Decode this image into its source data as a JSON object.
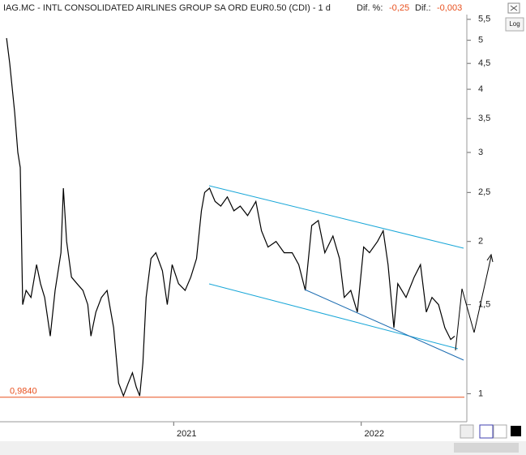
{
  "chart_data": {
    "type": "line",
    "title": "IAG.MC - INTL CONSOLIDATED AIRLINES GROUP SA ORD EUR0.50 (CDI)  -  1 d",
    "stats": [
      {
        "label": "Dif. %:",
        "value": "-0,25"
      },
      {
        "label": "Dif.:",
        "value": "-0,003"
      }
    ],
    "log_button": "Log",
    "log_scale": true,
    "xlim": [
      2020.074,
      2022.563
    ],
    "xticks": [
      2021,
      2022
    ],
    "ylim": [
      0.88,
      5.62
    ],
    "yticks": [
      1,
      {
        "value": 1.5,
        "label": "1,5"
      },
      2,
      {
        "value": 2.5,
        "label": "2,5"
      },
      3,
      {
        "value": 3.5,
        "label": "3,5"
      },
      4,
      {
        "value": 4.5,
        "label": "4,5"
      },
      5,
      {
        "value": 5.5,
        "label": "5,5"
      }
    ],
    "hline": {
      "value": 0.984,
      "label": "0,9840",
      "color": "#e8501e"
    },
    "series": [
      {
        "color": "#000000",
        "x": [
          2020.109,
          2020.126,
          2020.152,
          2020.169,
          2020.182,
          2020.195,
          2020.213,
          2020.239,
          2020.269,
          2020.29,
          2020.312,
          2020.342,
          2020.368,
          2020.399,
          2020.412,
          2020.429,
          2020.455,
          2020.485,
          2020.516,
          2020.542,
          2020.559,
          2020.585,
          2020.615,
          2020.645,
          2020.68,
          2020.706,
          2020.732,
          2020.758,
          2020.78,
          2020.801,
          2020.819,
          2020.836,
          2020.853,
          2020.879,
          2020.905,
          2020.94,
          2020.966,
          2020.992,
          2021.026,
          2021.061,
          2021.091,
          2021.122,
          2021.148,
          2021.165,
          2021.191,
          2021.221,
          2021.251,
          2021.286,
          2021.321,
          2021.355,
          2021.394,
          2021.438,
          2021.468,
          2021.503,
          2021.546,
          2021.589,
          2021.632,
          2021.667,
          2021.702,
          2021.736,
          2021.771,
          2021.806,
          2021.849,
          2021.884,
          2021.909,
          2021.944,
          2021.979,
          2022.013,
          2022.044,
          2022.087,
          2022.117,
          2022.143,
          2022.174,
          2022.195,
          2022.239,
          2022.282,
          2022.316,
          2022.347,
          2022.377,
          2022.412,
          2022.446,
          2022.477,
          2022.498
        ],
        "values": [
          5.05,
          4.5,
          3.6,
          3.0,
          2.8,
          1.5,
          1.6,
          1.55,
          1.8,
          1.65,
          1.55,
          1.3,
          1.6,
          1.9,
          2.55,
          2.0,
          1.7,
          1.65,
          1.6,
          1.5,
          1.3,
          1.45,
          1.55,
          1.6,
          1.35,
          1.05,
          0.99,
          1.05,
          1.1,
          1.03,
          0.99,
          1.15,
          1.55,
          1.85,
          1.9,
          1.75,
          1.5,
          1.8,
          1.65,
          1.6,
          1.7,
          1.85,
          2.3,
          2.5,
          2.55,
          2.4,
          2.35,
          2.45,
          2.3,
          2.35,
          2.25,
          2.4,
          2.1,
          1.95,
          2.0,
          1.9,
          1.9,
          1.8,
          1.6,
          2.15,
          2.2,
          1.9,
          2.05,
          1.85,
          1.55,
          1.6,
          1.45,
          1.95,
          1.9,
          2.0,
          2.1,
          1.8,
          1.35,
          1.65,
          1.55,
          1.7,
          1.8,
          1.45,
          1.55,
          1.5,
          1.35,
          1.28,
          1.3
        ]
      }
    ]
  }
}
